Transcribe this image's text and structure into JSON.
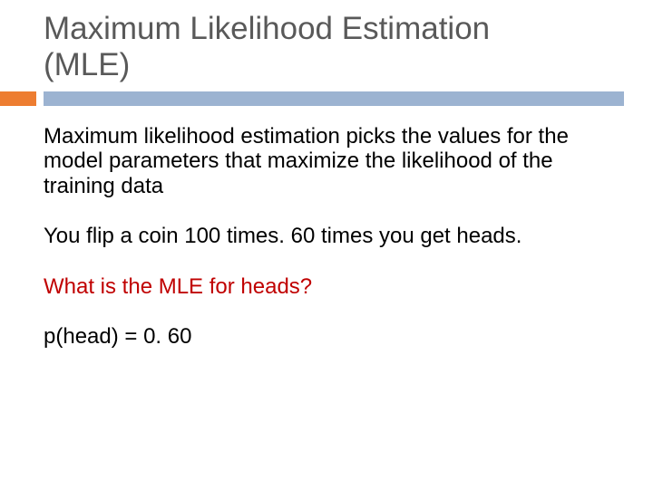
{
  "colors": {
    "title_text": "#595959",
    "body_text": "#000000",
    "highlight_text": "#c00000",
    "accent_box": "#ed7d31",
    "rule_bar": "#9cb3d1",
    "background": "#ffffff"
  },
  "typography": {
    "title_fontsize": 35,
    "body_fontsize": 24,
    "font_family": "Arial"
  },
  "title": {
    "line1": "Maximum Likelihood Estimation",
    "line2": "(MLE)"
  },
  "body": {
    "p1": "Maximum likelihood estimation picks the values for the model parameters that maximize the likelihood of the training data",
    "p2": "You flip a coin 100 times.  60 times you get heads.",
    "p3": "What is the MLE for heads?",
    "p4": "p(head) = 0. 60"
  },
  "layout": {
    "slide_width": 720,
    "slide_height": 540,
    "title_left_pad": 48,
    "content_left_pad": 48
  }
}
